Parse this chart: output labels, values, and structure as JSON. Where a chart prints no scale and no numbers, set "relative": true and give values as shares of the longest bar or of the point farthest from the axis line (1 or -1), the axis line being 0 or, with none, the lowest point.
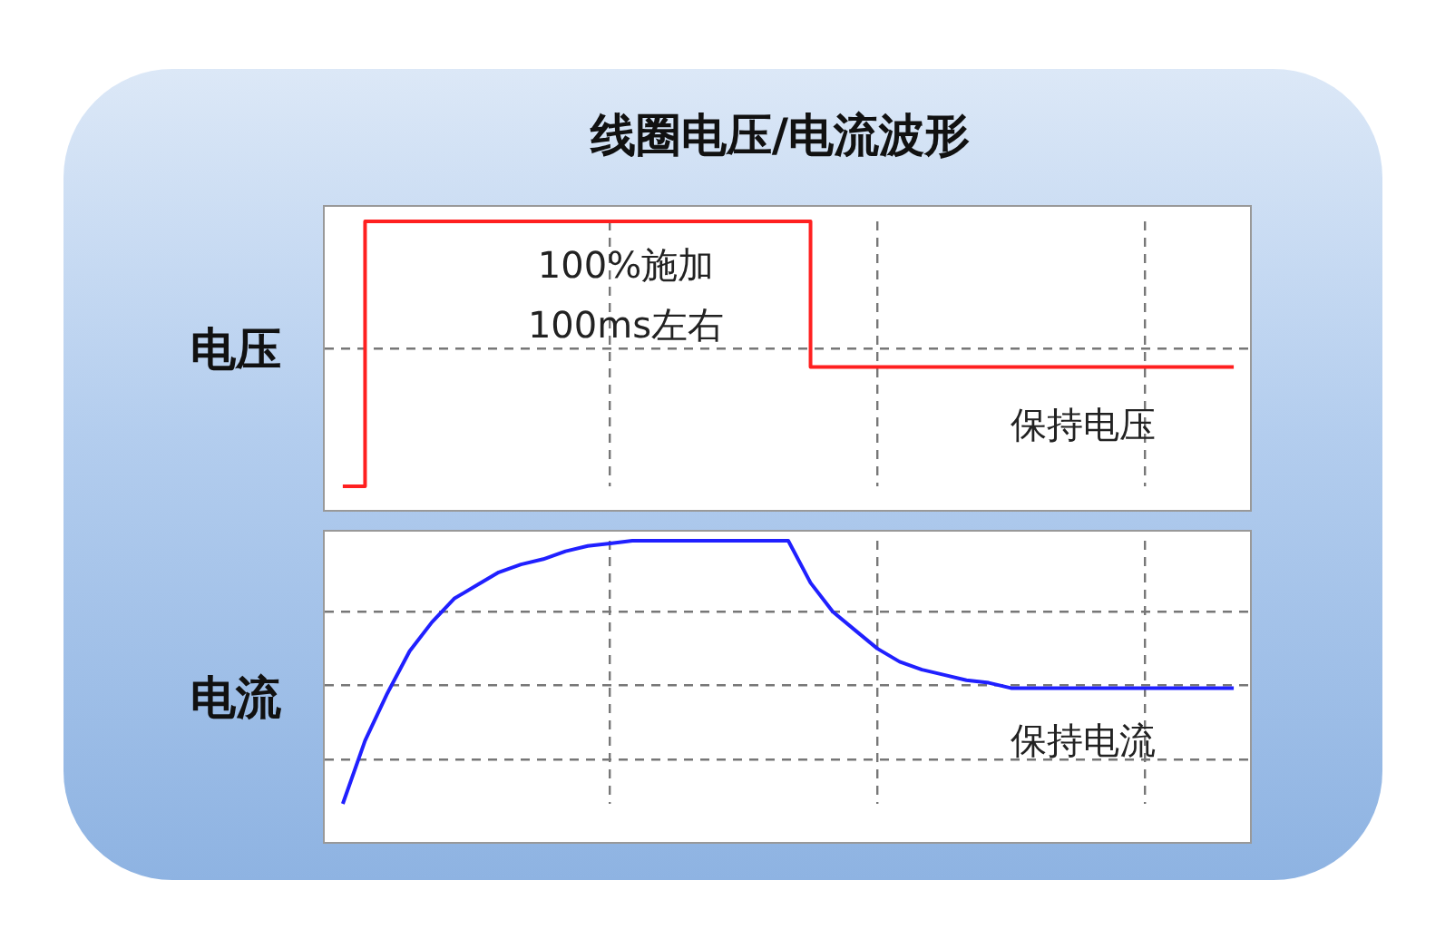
{
  "chart_data": [
    {
      "type": "step",
      "title": "线圈电压/电流波形",
      "ylabel": "电压",
      "relative": true,
      "grid": true,
      "legend": false,
      "categories": [
        null,
        null,
        null,
        null,
        null,
        null,
        null,
        null,
        null,
        null,
        null,
        null,
        null,
        null,
        null,
        null,
        null,
        null,
        null,
        null,
        null,
        null,
        null,
        null,
        null,
        null,
        null,
        null,
        null,
        null,
        null,
        null,
        null,
        null,
        null,
        null,
        null,
        null,
        null,
        null,
        null
      ],
      "series": [
        {
          "color": "#ff2020",
          "values": [
            0,
            1,
            1,
            1,
            1,
            1,
            1,
            1,
            1,
            1,
            1,
            1,
            1,
            1,
            1,
            1,
            1,
            1,
            1,
            1,
            1,
            0.45,
            0.45,
            0.45,
            0.45,
            0.45,
            0.45,
            0.45,
            0.45,
            0.45,
            0.45,
            0.45,
            0.45,
            0.45,
            0.45,
            0.45,
            0.45,
            0.45,
            0.45,
            0.45,
            0.45
          ]
        }
      ],
      "annotations": [
        "100%施加\n100ms左右",
        "保持电压"
      ]
    },
    {
      "type": "line",
      "ylabel": "电流",
      "relative": true,
      "grid": true,
      "legend": false,
      "categories": [
        null,
        null,
        null,
        null,
        null,
        null,
        null,
        null,
        null,
        null,
        null,
        null,
        null,
        null,
        null,
        null,
        null,
        null,
        null,
        null,
        null,
        null,
        null,
        null,
        null,
        null,
        null,
        null,
        null,
        null,
        null,
        null,
        null,
        null,
        null,
        null,
        null,
        null,
        null,
        null,
        null
      ],
      "series": [
        {
          "color": "#2020ff",
          "values": [
            0,
            0.24,
            0.42,
            0.58,
            0.69,
            0.78,
            0.83,
            0.88,
            0.91,
            0.93,
            0.96,
            0.98,
            0.99,
            1,
            1,
            1,
            1,
            1,
            1,
            1,
            1,
            0.84,
            0.73,
            0.66,
            0.59,
            0.54,
            0.51,
            0.49,
            0.47,
            0.46,
            0.44,
            0.44,
            0.44,
            0.44,
            0.44,
            0.44,
            0.44,
            0.44,
            0.44,
            0.44,
            0.44
          ]
        }
      ],
      "annotations": [
        "保持电流"
      ]
    }
  ]
}
